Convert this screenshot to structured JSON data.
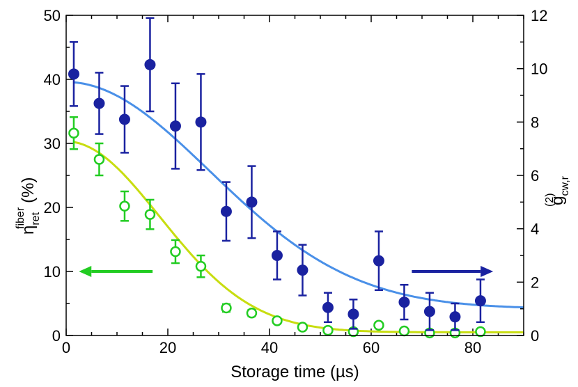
{
  "chart_data": {
    "type": "scatter",
    "xlabel": "Storage time (µs)",
    "ylabel_left": {
      "symbol": "η",
      "sup": "fiber",
      "sub": "ret",
      "unit": "(%)"
    },
    "ylabel_right": {
      "symbol": "g",
      "sup": "(2)",
      "sub": "cw,r"
    },
    "xlim": [
      0,
      90
    ],
    "ylim_left": [
      0,
      50
    ],
    "ylim_right": [
      0,
      12
    ],
    "x_ticks": [
      0,
      20,
      40,
      60,
      80
    ],
    "y_left_ticks": [
      0,
      10,
      20,
      30,
      40,
      50
    ],
    "y_right_ticks": [
      0,
      2,
      4,
      6,
      8,
      10,
      12
    ],
    "colors": {
      "efficiency_points": "#22cc22",
      "efficiency_fit": "#c8dd10",
      "g2_points": "#1a22a0",
      "g2_fit": "#4a90e8"
    },
    "series": [
      {
        "name": "efficiency",
        "axis": "left",
        "marker": "open-circle",
        "x": [
          1.5,
          6.5,
          11.5,
          16.5,
          21.5,
          26.5,
          31.5,
          36.5,
          41.5,
          46.5,
          51.5,
          56.5,
          61.5,
          66.5,
          71.5,
          76.5,
          81.5
        ],
        "y": [
          31.6,
          27.5,
          20.2,
          18.9,
          13.1,
          10.8,
          4.3,
          3.5,
          2.3,
          1.3,
          0.8,
          0.6,
          1.6,
          0.7,
          0.4,
          0.4,
          0.6
        ],
        "err": [
          2.5,
          2.5,
          2.3,
          2.3,
          1.8,
          1.7,
          0.6,
          0.5,
          0.3,
          0.3,
          0.2,
          0.2,
          0.3,
          0.2,
          0.1,
          0.1,
          0.2
        ]
      },
      {
        "name": "g2",
        "axis": "right",
        "marker": "filled-circle",
        "x": [
          1.5,
          6.5,
          11.5,
          16.5,
          21.5,
          26.5,
          31.5,
          36.5,
          41.5,
          46.5,
          51.5,
          56.5,
          61.5,
          66.5,
          71.5,
          76.5,
          81.5
        ],
        "y": [
          9.8,
          8.7,
          8.1,
          10.15,
          7.85,
          8.0,
          4.65,
          5.0,
          3.0,
          2.45,
          1.05,
          0.8,
          2.8,
          1.25,
          0.9,
          0.7,
          1.3
        ],
        "err": [
          1.2,
          1.15,
          1.25,
          1.75,
          1.6,
          1.8,
          1.1,
          1.35,
          0.9,
          0.95,
          0.55,
          0.55,
          1.1,
          0.65,
          0.7,
          0.5,
          0.8
        ]
      }
    ],
    "fits": [
      {
        "name": "efficiency-fit",
        "axis": "left",
        "form": "a*exp(-(t/tau)^2)+c",
        "a": 29.8,
        "tau": 26,
        "c": 0.5
      },
      {
        "name": "g2-fit",
        "axis": "right",
        "form": "a*exp(-(t/tau)^2)+c",
        "a": 8.5,
        "tau": 40,
        "c": 1.0
      }
    ],
    "annotations": [
      {
        "name": "left-arrow",
        "direction": "left",
        "color": "#22cc22",
        "x_from": 17,
        "x_to": 2.5,
        "y_left": 10
      },
      {
        "name": "right-arrow",
        "direction": "right",
        "color": "#1a22a0",
        "x_from": 68,
        "x_to": 84,
        "y_left": 10
      }
    ]
  }
}
